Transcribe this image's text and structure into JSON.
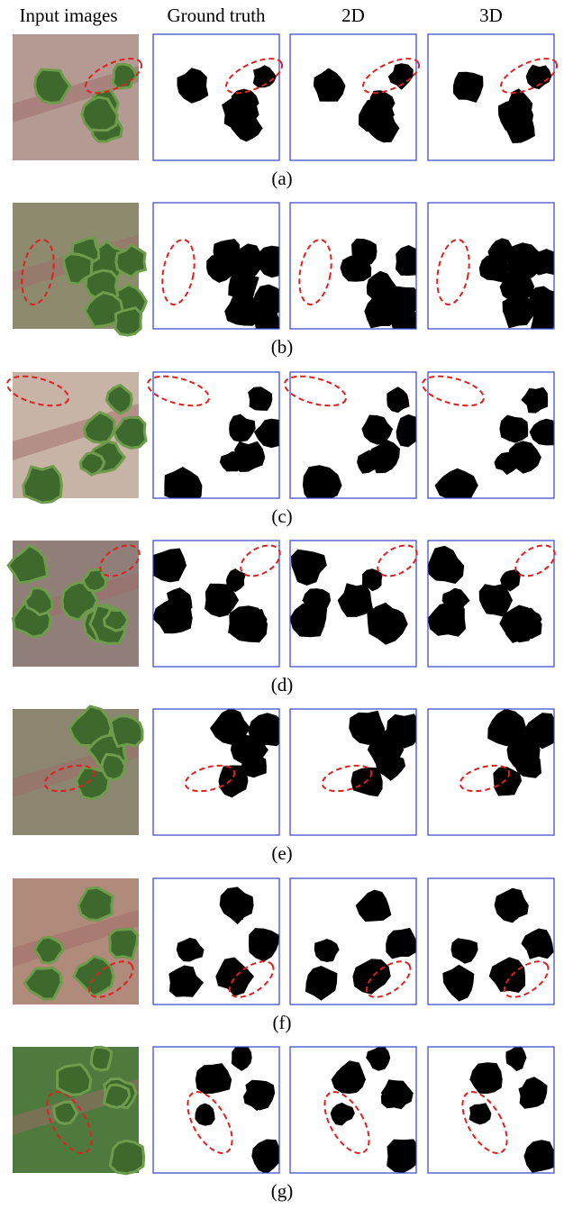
{
  "header": {
    "columns": [
      "Input images",
      "Ground truth",
      "2D",
      "3D"
    ]
  },
  "rows": [
    "(a)",
    "(b)",
    "(c)",
    "(d)",
    "(e)",
    "(f)",
    "(g)"
  ]
}
